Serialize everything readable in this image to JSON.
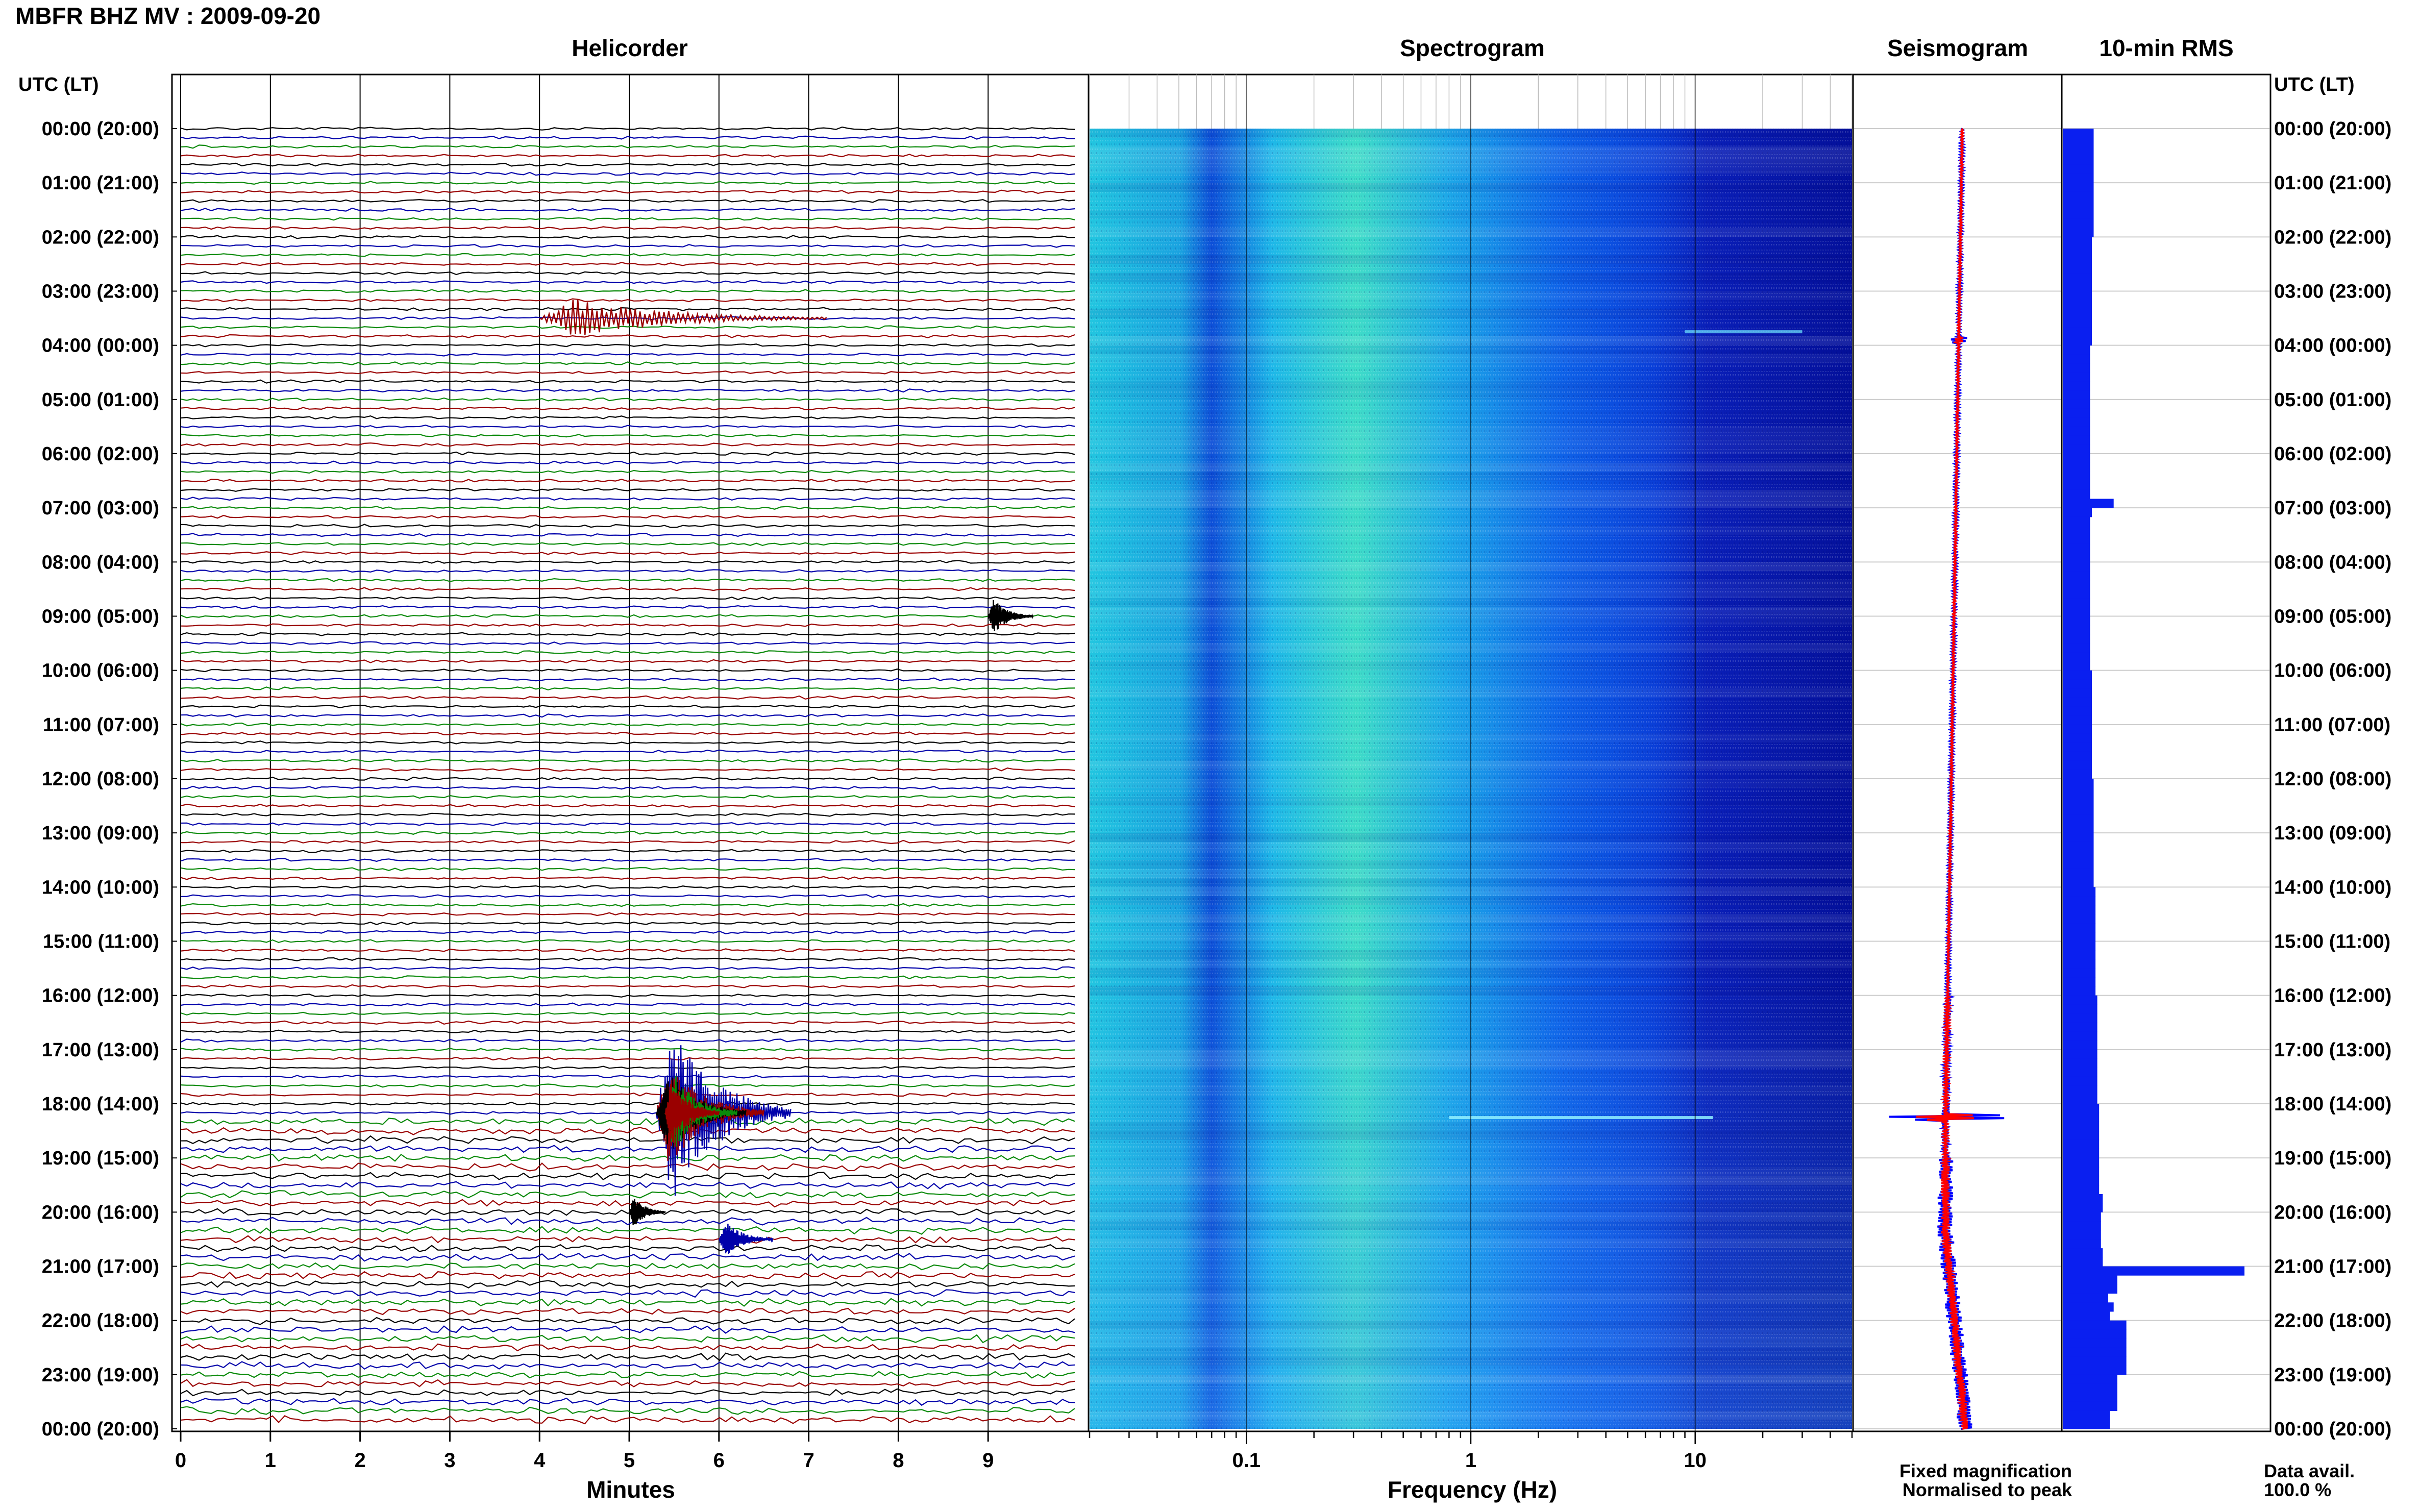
{
  "title": "MBFR BHZ MV : 2009-09-20",
  "panels": {
    "helicorder": "Helicorder",
    "spectrogram": "Spectrogram",
    "seismogram": "Seismogram",
    "rms": "10-min RMS"
  },
  "time_header_left": "UTC (LT)",
  "time_header_right": "UTC (LT)",
  "time_labels": [
    "00:00 (20:00)",
    "01:00 (21:00)",
    "02:00 (22:00)",
    "03:00 (23:00)",
    "04:00 (00:00)",
    "05:00 (01:00)",
    "06:00 (02:00)",
    "07:00 (03:00)",
    "08:00 (04:00)",
    "09:00 (05:00)",
    "10:00 (06:00)",
    "11:00 (07:00)",
    "12:00 (08:00)",
    "13:00 (09:00)",
    "14:00 (10:00)",
    "15:00 (11:00)",
    "16:00 (12:00)",
    "17:00 (13:00)",
    "18:00 (14:00)",
    "19:00 (15:00)",
    "20:00 (16:00)",
    "21:00 (17:00)",
    "22:00 (18:00)",
    "23:00 (19:00)",
    "00:00 (20:00)"
  ],
  "x_axes": {
    "helicorder_label": "Minutes",
    "helicorder_ticks": [
      "0",
      "1",
      "2",
      "3",
      "4",
      "5",
      "6",
      "7",
      "8",
      "9"
    ],
    "spectrogram_label": "Frequency (Hz)",
    "spectrogram_ticks": [
      "0.1",
      "1",
      "10"
    ]
  },
  "legend": {
    "fixed": "Fixed magnification",
    "normalised": "Normalised to peak",
    "fixed_color": "#0000ff",
    "normalised_color": "#ff0000"
  },
  "data_avail_label": "Data avail.",
  "data_avail_value": "100.0 %",
  "trace_colors": [
    "#000000",
    "#0000aa",
    "#0a8a0a",
    "#9a0000"
  ],
  "chart_data": [
    {
      "type": "line",
      "panel": "helicorder",
      "x_unit": "minutes",
      "xlim": [
        0,
        10
      ],
      "line_interval_minutes": 10,
      "lines_count": 144,
      "events": [
        {
          "start_minute": 1095.3,
          "duration_minutes": 1.5,
          "amplitude": 1.0,
          "color": "#0000aa"
        },
        {
          "start_minute": 1095.3,
          "duration_minutes": 1.2,
          "amplitude": 0.6,
          "color": "#9a0000"
        },
        {
          "start_minute": 1095.3,
          "duration_minutes": 1.0,
          "amplitude": 0.5,
          "color": "#000000"
        },
        {
          "start_minute": 1095.4,
          "duration_minutes": 0.8,
          "amplitude": 0.45,
          "color": "#0a8a0a"
        },
        {
          "start_minute": 1095.4,
          "duration_minutes": 0.6,
          "amplitude": 0.4,
          "color": "#9a0000"
        },
        {
          "start_minute": 214.0,
          "duration_minutes": 3.2,
          "amplitude": 0.22,
          "color": "#9a0000"
        },
        {
          "start_minute": 549.0,
          "duration_minutes": 0.5,
          "amplitude": 0.2,
          "color": "#000000"
        },
        {
          "start_minute": 1236.0,
          "duration_minutes": 0.6,
          "amplitude": 0.2,
          "color": "#0000aa"
        },
        {
          "start_minute": 1205.0,
          "duration_minutes": 0.4,
          "amplitude": 0.18,
          "color": "#000000"
        }
      ]
    },
    {
      "type": "heatmap",
      "panel": "spectrogram",
      "x_label": "Frequency (Hz)",
      "x_scale": "log",
      "xlim": [
        0.02,
        50
      ],
      "rows": 144
    },
    {
      "type": "line",
      "panel": "seismogram",
      "series": [
        {
          "name": "Fixed magnification",
          "color": "#0000ff"
        },
        {
          "name": "Normalised to peak",
          "color": "#ff0000"
        }
      ]
    },
    {
      "type": "bar",
      "panel": "rms",
      "bar_minutes": 10,
      "values": [
        0.17,
        0.17,
        0.17,
        0.17,
        0.17,
        0.17,
        0.17,
        0.17,
        0.17,
        0.17,
        0.17,
        0.17,
        0.16,
        0.16,
        0.16,
        0.16,
        0.16,
        0.16,
        0.16,
        0.16,
        0.16,
        0.16,
        0.16,
        0.16,
        0.15,
        0.15,
        0.15,
        0.15,
        0.15,
        0.15,
        0.15,
        0.15,
        0.15,
        0.15,
        0.15,
        0.15,
        0.15,
        0.15,
        0.15,
        0.15,
        0.15,
        0.28,
        0.16,
        0.15,
        0.15,
        0.15,
        0.15,
        0.15,
        0.15,
        0.15,
        0.15,
        0.15,
        0.15,
        0.15,
        0.15,
        0.15,
        0.15,
        0.15,
        0.15,
        0.15,
        0.16,
        0.16,
        0.16,
        0.16,
        0.16,
        0.16,
        0.16,
        0.16,
        0.16,
        0.16,
        0.16,
        0.16,
        0.17,
        0.17,
        0.17,
        0.17,
        0.17,
        0.17,
        0.17,
        0.17,
        0.17,
        0.17,
        0.17,
        0.17,
        0.18,
        0.18,
        0.18,
        0.18,
        0.18,
        0.18,
        0.18,
        0.18,
        0.18,
        0.18,
        0.18,
        0.18,
        0.19,
        0.19,
        0.19,
        0.19,
        0.19,
        0.19,
        0.19,
        0.19,
        0.19,
        0.19,
        0.19,
        0.19,
        0.2,
        0.2,
        0.2,
        0.2,
        0.2,
        0.2,
        0.2,
        0.2,
        0.2,
        0.2,
        0.22,
        0.22,
        0.21,
        0.21,
        0.21,
        0.21,
        0.22,
        0.22,
        1.0,
        0.3,
        0.3,
        0.25,
        0.28,
        0.26,
        0.35,
        0.35,
        0.35,
        0.35,
        0.35,
        0.35,
        0.3,
        0.3,
        0.3,
        0.3,
        0.26,
        0.26
      ]
    }
  ]
}
